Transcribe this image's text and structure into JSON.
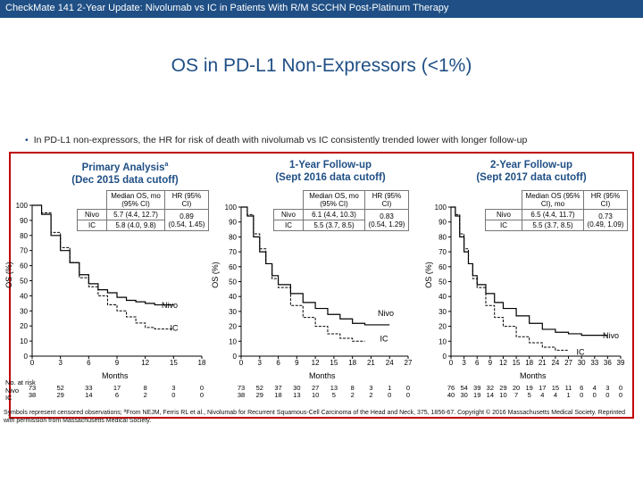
{
  "header": {
    "text": "CheckMate 141 2-Year Update: Nivolumab vs IC in Patients With R/M SCCHN Post-Platinum Therapy"
  },
  "title": "OS in PD-L1 Non-Expressors (<1%)",
  "bullet": "In PD-L1 non-expressors, the HR for risk of death with nivolumab vs IC consistently trended lower with longer follow-up",
  "panels": [
    {
      "title1": "Primary Analysis",
      "title_sup": "a",
      "title2": "(Dec 2015 data cutoff)",
      "table": {
        "col1": "Median OS, mo (95% CI)",
        "col2": "HR (95% CI)",
        "nivo_label": "Nivo",
        "ic_label": "IC",
        "nivo_os": "5.7 (4.4, 12.7)",
        "ic_os": "5.8 (4.0, 9.8)",
        "hr": "0.89",
        "hr_ci": "(0.54, 1.45)"
      },
      "nivo_label": "Nivo",
      "ic_label": "IC"
    },
    {
      "title1": "1-Year Follow-up",
      "title_sup": "",
      "title2": "(Sept 2016 data cutoff)",
      "table": {
        "col1": "Median OS, mo (95% CI)",
        "col2": "HR (95% CI)",
        "nivo_label": "Nivo",
        "ic_label": "IC",
        "nivo_os": "6.1 (4.4, 10.3)",
        "ic_os": "5.5 (3.7, 8.5)",
        "hr": "0.83",
        "hr_ci": "(0.54, 1.29)"
      },
      "nivo_label": "Nivo",
      "ic_label": "IC"
    },
    {
      "title1": "2-Year Follow-up",
      "title_sup": "",
      "title2": "(Sept 2017 data cutoff)",
      "table": {
        "col1": "Median OS (95% CI), mo",
        "col2": "HR (95% CI)",
        "nivo_label": "Nivo",
        "ic_label": "IC",
        "nivo_os": "6.5 (4.4, 11.7)",
        "ic_os": "5.5 (3.7, 8.5)",
        "hr": "0.73",
        "hr_ci": "(0.49, 1.09)"
      },
      "nivo_label": "Nivo",
      "ic_label": "IC"
    }
  ],
  "risk": {
    "header": "No. at risk",
    "nivo_label": "Nivo",
    "ic_label": "IC"
  },
  "footnote": "Symbols represent censored observations; ªFrom NEJM, Ferris RL et al., Nivolumab for Recurrent Squamous-Cell Carcinoma of the Head and Neck, 375, 1856-67. Copyright © 2016 Massachusetts Medical Society. Reprinted with permission from Massachusetts Medical Society.",
  "colors": {
    "header_bg": "#1f4f85",
    "frame": "#c00000",
    "curve": "#000000"
  },
  "chart_data": [
    {
      "type": "line",
      "title": "Primary Analysis (Dec 2015 data cutoff)",
      "xlabel": "Months",
      "ylabel": "OS (%)",
      "xlim": [
        0,
        18
      ],
      "ylim": [
        0,
        100
      ],
      "xticks": [
        0,
        3,
        6,
        9,
        12,
        15,
        18
      ],
      "yticks": [
        0,
        10,
        20,
        30,
        40,
        50,
        60,
        70,
        80,
        90,
        100
      ],
      "series": [
        {
          "name": "Nivo",
          "x": [
            0,
            1,
            2,
            3,
            4,
            5,
            6,
            7,
            8,
            9,
            10,
            11,
            12,
            13,
            14,
            15
          ],
          "y": [
            100,
            94,
            80,
            70,
            62,
            54,
            48,
            44,
            42,
            39,
            37,
            36,
            35,
            34,
            34,
            34
          ]
        },
        {
          "name": "IC",
          "x": [
            0,
            1,
            2,
            3,
            4,
            5,
            6,
            7,
            8,
            9,
            10,
            11,
            12,
            13,
            14,
            15
          ],
          "y": [
            100,
            95,
            82,
            72,
            62,
            52,
            46,
            40,
            34,
            30,
            26,
            22,
            19,
            18,
            18,
            18
          ]
        }
      ],
      "risk_times": [
        0,
        3,
        6,
        9,
        12,
        15,
        18
      ],
      "risk_nivo": [
        "73",
        "52",
        "33",
        "17",
        "8",
        "3",
        "0"
      ],
      "risk_ic": [
        "38",
        "29",
        "14",
        "6",
        "2",
        "0",
        "0"
      ]
    },
    {
      "type": "line",
      "title": "1-Year Follow-up (Sept 2016 data cutoff)",
      "xlabel": "Months",
      "ylabel": "OS (%)",
      "xlim": [
        0,
        27
      ],
      "ylim": [
        0,
        100
      ],
      "xticks": [
        0,
        3,
        6,
        9,
        12,
        15,
        18,
        21,
        24,
        27
      ],
      "yticks": [
        0,
        10,
        20,
        30,
        40,
        50,
        60,
        70,
        80,
        90,
        100
      ],
      "series": [
        {
          "name": "Nivo",
          "x": [
            0,
            1,
            2,
            3,
            4,
            5,
            6,
            8,
            10,
            12,
            14,
            16,
            18,
            20,
            22,
            24
          ],
          "y": [
            100,
            94,
            80,
            70,
            62,
            54,
            48,
            42,
            36,
            32,
            28,
            25,
            22,
            21,
            21,
            21
          ]
        },
        {
          "name": "IC",
          "x": [
            0,
            1,
            2,
            3,
            4,
            5,
            6,
            8,
            10,
            12,
            14,
            16,
            18,
            20
          ],
          "y": [
            100,
            95,
            82,
            72,
            62,
            52,
            46,
            34,
            26,
            20,
            15,
            12,
            10,
            10
          ]
        }
      ],
      "risk_times": [
        0,
        3,
        6,
        9,
        12,
        15,
        18,
        21,
        24,
        27
      ],
      "risk_nivo": [
        "73",
        "52",
        "37",
        "30",
        "27",
        "13",
        "8",
        "3",
        "1",
        "0"
      ],
      "risk_ic": [
        "38",
        "29",
        "18",
        "13",
        "10",
        "5",
        "2",
        "2",
        "0",
        "0"
      ]
    },
    {
      "type": "line",
      "title": "2-Year Follow-up (Sept 2017 data cutoff)",
      "xlabel": "Months",
      "ylabel": "OS (%)",
      "xlim": [
        0,
        39
      ],
      "ylim": [
        0,
        100
      ],
      "xticks": [
        0,
        3,
        6,
        9,
        12,
        15,
        18,
        21,
        24,
        27,
        30,
        33,
        36,
        39
      ],
      "yticks": [
        0,
        10,
        20,
        30,
        40,
        50,
        60,
        70,
        80,
        90,
        100
      ],
      "series": [
        {
          "name": "Nivo",
          "x": [
            0,
            1,
            2,
            3,
            4,
            5,
            6,
            8,
            10,
            12,
            15,
            18,
            21,
            24,
            27,
            30,
            33,
            36
          ],
          "y": [
            100,
            94,
            80,
            70,
            62,
            54,
            48,
            42,
            36,
            32,
            27,
            22,
            18,
            16,
            15,
            14,
            14,
            14
          ]
        },
        {
          "name": "IC",
          "x": [
            0,
            1,
            2,
            3,
            4,
            5,
            6,
            8,
            10,
            12,
            15,
            18,
            21,
            24,
            27
          ],
          "y": [
            100,
            95,
            82,
            72,
            62,
            52,
            46,
            34,
            26,
            20,
            13,
            9,
            6,
            4,
            4
          ]
        }
      ],
      "risk_times": [
        0,
        3,
        6,
        9,
        12,
        15,
        18,
        21,
        24,
        27,
        30,
        33,
        36,
        39
      ],
      "risk_nivo": [
        "76",
        "54",
        "39",
        "32",
        "29",
        "20",
        "19",
        "17",
        "15",
        "11",
        "6",
        "4",
        "3",
        "0"
      ],
      "risk_ic": [
        "40",
        "30",
        "19",
        "14",
        "10",
        "7",
        "5",
        "4",
        "4",
        "1",
        "0",
        "0",
        "0",
        "0"
      ]
    }
  ]
}
